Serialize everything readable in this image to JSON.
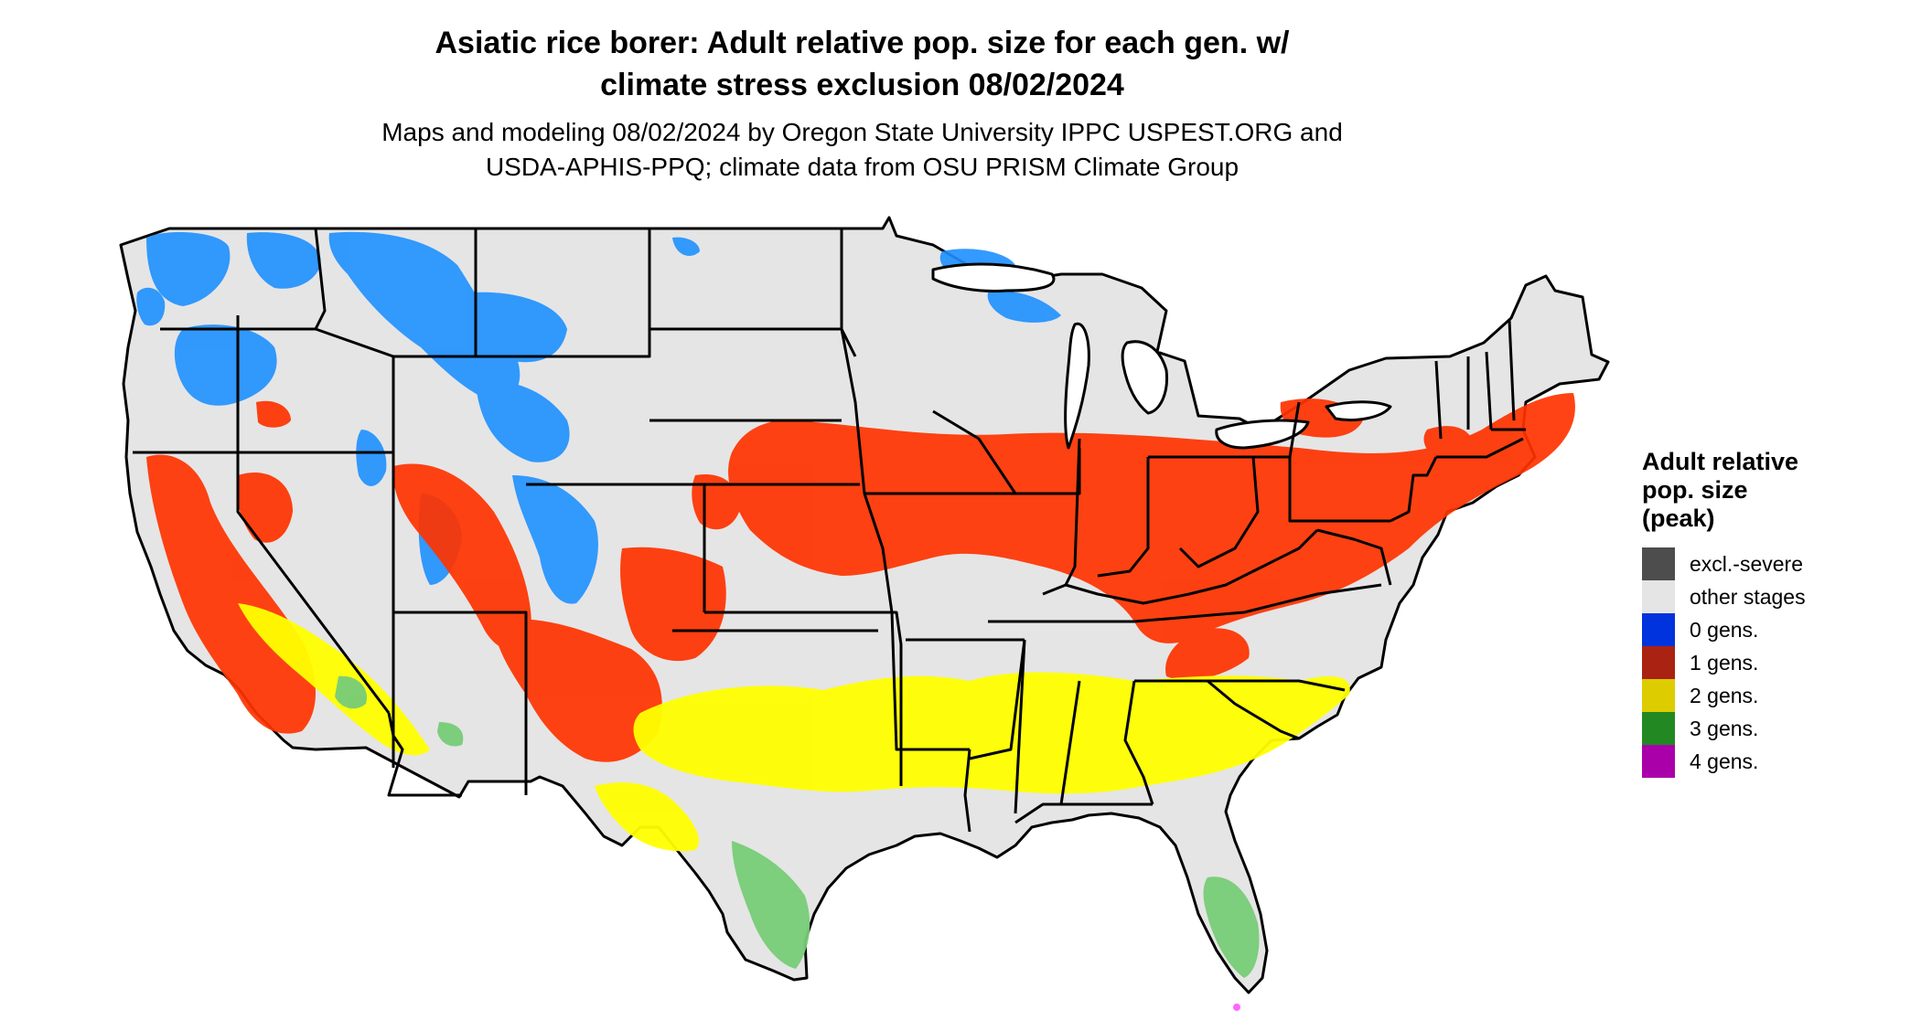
{
  "title": {
    "line1": "Asiatic rice borer: Adult relative pop. size for each gen. w/",
    "line2": "climate stress exclusion 08/02/2024"
  },
  "subtitle": {
    "line1": "Maps and modeling 08/02/2024 by Oregon State University IPPC USPEST.ORG and",
    "line2": "USDA-APHIS-PPQ; climate data from OSU PRISM Climate Group"
  },
  "legend": {
    "title_lines": [
      "Adult relative",
      "pop. size",
      "(peak)"
    ],
    "items": [
      {
        "label": "excl.-severe",
        "color": "#4d4d4d"
      },
      {
        "label": "other stages",
        "color": "#e5e5e5"
      },
      {
        "label": "0 gens.",
        "color": "#0033dd"
      },
      {
        "label": "1 gens.",
        "color": "#aa2211"
      },
      {
        "label": "2 gens.",
        "color": "#ddcc00"
      },
      {
        "label": "3 gens.",
        "color": "#228822"
      },
      {
        "label": "4 gens.",
        "color": "#aa00aa"
      }
    ]
  },
  "map": {
    "region": "Contiguous United States",
    "map_colors": {
      "land": "#e5e5e5",
      "zero_gens": "#1e90ff",
      "one_gen": "#ff3300",
      "two_gens": "#ffff00",
      "three_gens": "#77cc77",
      "four_gens": "#ff66ff",
      "borders": "#000000"
    }
  }
}
